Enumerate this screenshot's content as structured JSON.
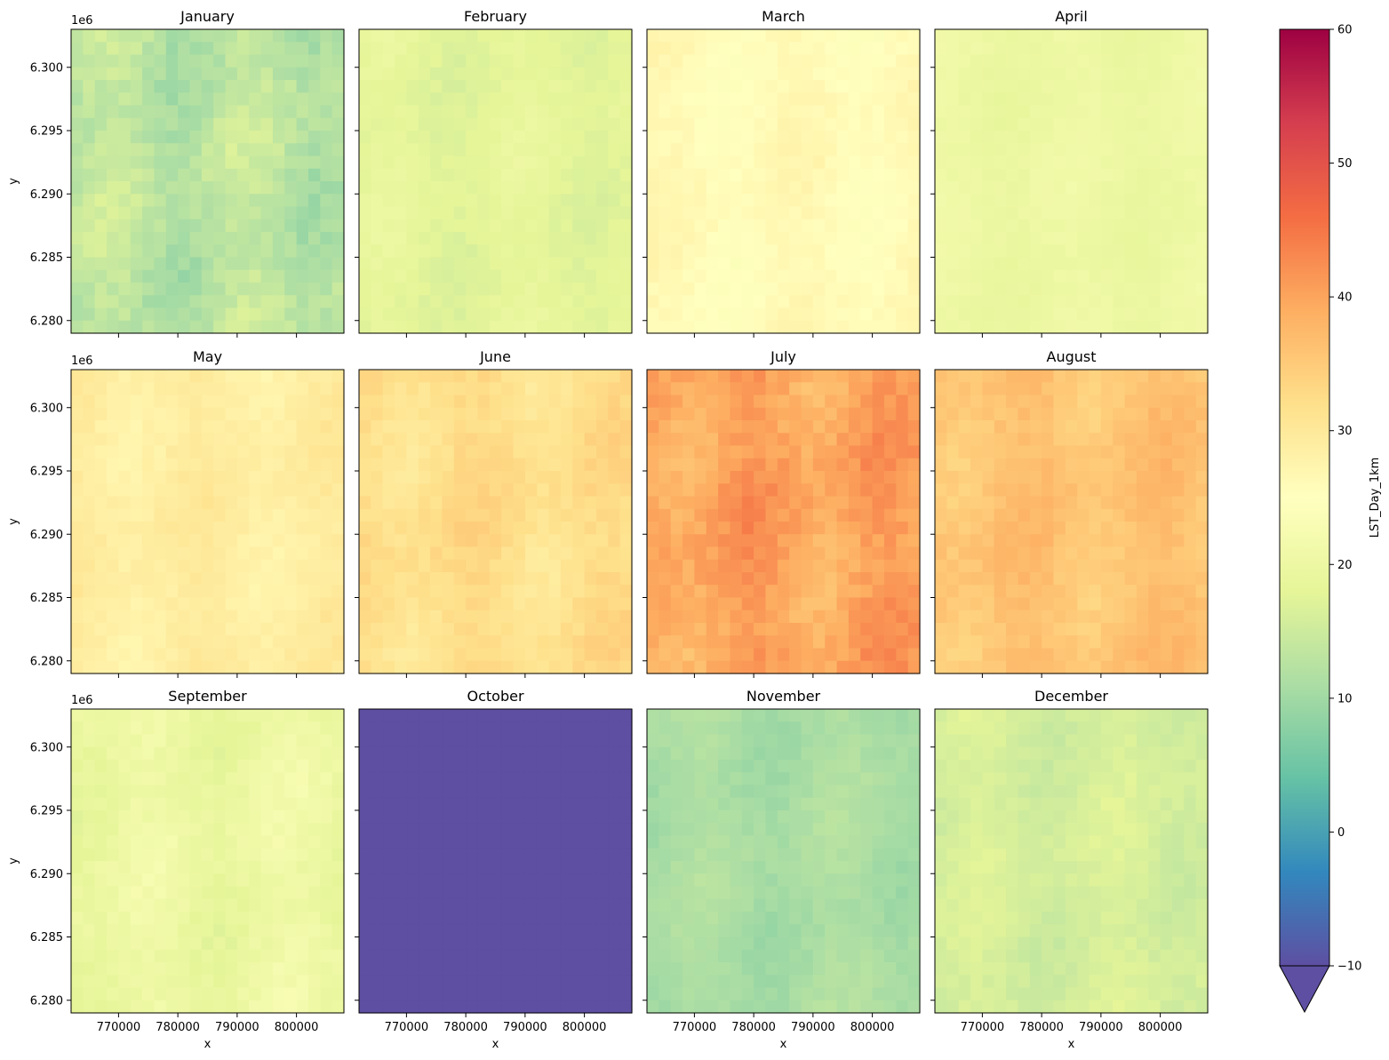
{
  "chart_data": {
    "type": "heatmap",
    "layout": "3x4 small multiples",
    "panels": [
      {
        "title": "January",
        "mean": 13,
        "variability": 3.0
      },
      {
        "title": "February",
        "mean": 18,
        "variability": 1.5
      },
      {
        "title": "March",
        "mean": 26,
        "variability": 1.5
      },
      {
        "title": "April",
        "mean": 20,
        "variability": 1.0
      },
      {
        "title": "May",
        "mean": 29,
        "variability": 1.5
      },
      {
        "title": "June",
        "mean": 32,
        "variability": 2.0
      },
      {
        "title": "July",
        "mean": 40,
        "variability": 3.0
      },
      {
        "title": "August",
        "mean": 36,
        "variability": 2.0
      },
      {
        "title": "September",
        "mean": 20,
        "variability": 2.0
      },
      {
        "title": "October",
        "mean": -12,
        "variability": 0.0
      },
      {
        "title": "November",
        "mean": 11,
        "variability": 1.5
      },
      {
        "title": "December",
        "mean": 16,
        "variability": 1.5
      }
    ],
    "xlabel": "x",
    "ylabel": "y",
    "xlim": [
      762000,
      808000
    ],
    "ylim": [
      6279000,
      6303000
    ],
    "xticks": [
      770000,
      780000,
      790000,
      800000
    ],
    "xtick_labels": [
      "770000",
      "780000",
      "790000",
      "800000"
    ],
    "yticks": [
      6280000,
      6285000,
      6290000,
      6295000,
      6300000
    ],
    "ytick_labels": [
      "6.280",
      "6.285",
      "6.290",
      "6.295",
      "6.300"
    ],
    "y_offset_label": "1e6",
    "colorbar": {
      "label": "LST_Day_1km",
      "range": [
        -10,
        60
      ],
      "ticks": [
        -10,
        0,
        10,
        20,
        30,
        40,
        50,
        60
      ],
      "tick_labels": [
        "−10",
        "0",
        "10",
        "20",
        "30",
        "40",
        "50",
        "60"
      ],
      "extend": "min",
      "colormap": "Spectral_r"
    },
    "grid": false
  }
}
